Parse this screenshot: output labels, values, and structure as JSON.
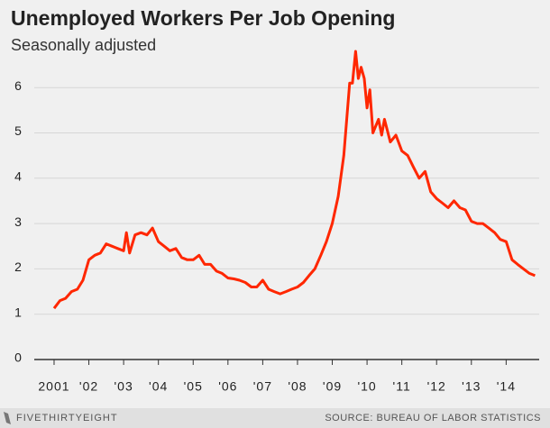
{
  "chart_data": {
    "type": "line",
    "title": "Unemployed Workers Per Job Opening",
    "subtitle": "Seasonally adjusted",
    "brand": "FIVETHIRTYEIGHT",
    "source": "SOURCE: BUREAU OF LABOR STATISTICS",
    "xlim": [
      2000.43,
      2014.95
    ],
    "xticks": [
      {
        "value": 2001,
        "label": "2001"
      },
      {
        "value": 2002,
        "label": "'02"
      },
      {
        "value": 2003,
        "label": "'03"
      },
      {
        "value": 2004,
        "label": "'04"
      },
      {
        "value": 2005,
        "label": "'05"
      },
      {
        "value": 2006,
        "label": "'06"
      },
      {
        "value": 2007,
        "label": "'07"
      },
      {
        "value": 2008,
        "label": "'08"
      },
      {
        "value": 2009,
        "label": "'09"
      },
      {
        "value": 2010,
        "label": "'10"
      },
      {
        "value": 2011,
        "label": "'11"
      },
      {
        "value": 2012,
        "label": "'12"
      },
      {
        "value": 2013,
        "label": "'13"
      },
      {
        "value": 2014,
        "label": "'14"
      }
    ],
    "ylim": [
      0,
      7
    ],
    "yticks": [
      0,
      1,
      2,
      3,
      4,
      5,
      6
    ],
    "grid": true,
    "x": [
      2001.0,
      2001.17,
      2001.33,
      2001.5,
      2001.67,
      2001.83,
      2002.0,
      2002.17,
      2002.33,
      2002.5,
      2002.67,
      2002.83,
      2003.0,
      2003.08,
      2003.17,
      2003.33,
      2003.5,
      2003.67,
      2003.83,
      2004.0,
      2004.17,
      2004.33,
      2004.5,
      2004.67,
      2004.83,
      2005.0,
      2005.17,
      2005.33,
      2005.5,
      2005.67,
      2005.83,
      2006.0,
      2006.17,
      2006.33,
      2006.5,
      2006.67,
      2006.83,
      2007.0,
      2007.17,
      2007.33,
      2007.5,
      2007.67,
      2007.83,
      2008.0,
      2008.17,
      2008.33,
      2008.5,
      2008.67,
      2008.83,
      2009.0,
      2009.17,
      2009.33,
      2009.5,
      2009.58,
      2009.67,
      2009.75,
      2009.83,
      2009.92,
      2010.0,
      2010.08,
      2010.17,
      2010.33,
      2010.42,
      2010.5,
      2010.67,
      2010.83,
      2011.0,
      2011.17,
      2011.33,
      2011.5,
      2011.67,
      2011.83,
      2012.0,
      2012.17,
      2012.33,
      2012.5,
      2012.67,
      2012.83,
      2013.0,
      2013.17,
      2013.33,
      2013.5,
      2013.67,
      2013.83,
      2014.0,
      2014.17,
      2014.33,
      2014.5,
      2014.67,
      2014.83
    ],
    "series": [
      {
        "color": "#ff2700",
        "values": [
          1.13,
          1.3,
          1.35,
          1.5,
          1.55,
          1.75,
          2.2,
          2.3,
          2.35,
          2.55,
          2.5,
          2.45,
          2.4,
          2.8,
          2.35,
          2.75,
          2.8,
          2.75,
          2.9,
          2.6,
          2.5,
          2.4,
          2.45,
          2.25,
          2.2,
          2.2,
          2.3,
          2.1,
          2.1,
          1.95,
          1.9,
          1.8,
          1.78,
          1.75,
          1.7,
          1.6,
          1.6,
          1.75,
          1.55,
          1.5,
          1.45,
          1.5,
          1.55,
          1.6,
          1.7,
          1.85,
          2.0,
          2.3,
          2.6,
          3.0,
          3.6,
          4.5,
          6.1,
          6.1,
          6.8,
          6.2,
          6.45,
          6.2,
          5.55,
          5.95,
          5.0,
          5.3,
          4.95,
          5.3,
          4.8,
          4.95,
          4.6,
          4.5,
          4.25,
          4.0,
          4.15,
          3.7,
          3.55,
          3.45,
          3.35,
          3.5,
          3.35,
          3.3,
          3.05,
          3.0,
          3.0,
          2.9,
          2.8,
          2.65,
          2.6,
          2.2,
          2.1,
          2.0,
          1.9,
          1.85
        ]
      }
    ]
  }
}
